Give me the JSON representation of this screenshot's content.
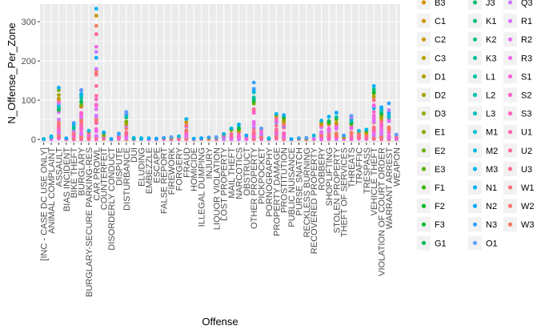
{
  "chart_data": {
    "type": "scatter",
    "xlabel": "Offense",
    "ylabel": "N_Offense_Per_Zone",
    "ylim": [
      -8,
      345
    ],
    "y_ticks": [
      0,
      100,
      200,
      300
    ],
    "grid": true,
    "legend_position": "right",
    "categories": [
      "[INC - CASE DC USE ONLY]",
      "ANIMAL COMPLAINT",
      "ASSAULT",
      "BIAS INCIDENT",
      "BIKE THEFT",
      "BURGLARY",
      "BURGLARY-SECURE PARKING-RES",
      "CAR PROWL",
      "COUNTERFEIT",
      "DISORDERLY CONDUCT",
      "DISPUTE",
      "DISTURBANCE",
      "DUI",
      "ELUDING",
      "EMBEZZLE",
      "ESCAPE",
      "FALSE REPORT",
      "FIREWORK",
      "FORGERY",
      "FRAUD",
      "HOMICIDE",
      "ILLEGAL DUMPING",
      "INJURY",
      "LIQUOR VIOLATION",
      "LOST PROPERTY",
      "MAIL THEFT",
      "NARCOTICS",
      "OBSTRUCT",
      "OTHER PROPERTY",
      "PICKPOCKET",
      "PORNOGRAPHY",
      "PROPERTY DAMAGE",
      "PROSTITUTION",
      "PUBLIC NUISANCE",
      "PURSE SNATCH",
      "RECKLESS BURNING",
      "RECOVERED PROPERTY",
      "ROBBERY",
      "SHOPLIFTING",
      "STOLEN PROPERTY",
      "THEFT OF SERVICES",
      "THREATS",
      "TRAFFIC",
      "TRESPASS",
      "VEHICLE THEFT",
      "VIOLATION OF COURT ORDER",
      "WARRANT ARREST",
      "WEAPON"
    ],
    "x_tick_labels": [
      "[INC - CASE DC USE ONLY]",
      "ANIMAL COMPLAINT",
      "ASSAULT",
      "BIAS INCIDENT",
      "BIKE THEFT",
      "BURGLARY",
      "BURGLARY-SECURE PARKING-RES",
      "CAR PROWL",
      "COUNTERFEIT",
      "DISORDERLY CONDUCT",
      "DISPUTE",
      "DISTURBANCE",
      "DUI",
      "ELUDING",
      "EMBEZZLE",
      "ESCAPE",
      "FALSE REPORT",
      "FIREWORK",
      "FORGERY",
      "FRAUD",
      "HOMICIDE",
      "ILLEGAL DUMPING",
      "INJURY",
      "LIQUOR VIOLATION",
      "LOST PROPERTY",
      "MAIL THEFT",
      "NARCOTICS",
      "OBSTRUCT",
      "OTHER PROPERTY",
      "PICKPOCKET",
      "PORNOGRAPHY",
      "PROPERTY DAMAGE",
      "PROSTITUTION",
      "PUBLIC NUISANCE",
      "PURSE SNATCH",
      "RECKLESS BURNING",
      "RECOVERED PROPERTY",
      "ROBBERY",
      "SHOPLIFTING",
      "STOLEN PROPERTY",
      "THEFT OF SERVICES",
      "THREATS",
      "TRAFFIC",
      "TRESPASS",
      "VEHICLE THEFT",
      "VIOLATION OF COURT ORDER",
      "WARRANT ARREST",
      "WEAPON"
    ],
    "category_max": [
      1,
      8,
      132,
      3,
      42,
      126,
      22,
      333,
      18,
      1,
      15,
      70,
      4,
      3,
      3,
      2,
      4,
      6,
      8,
      52,
      2,
      3,
      5,
      6,
      14,
      28,
      38,
      10,
      145,
      28,
      3,
      65,
      62,
      1,
      3,
      4,
      10,
      48,
      58,
      68,
      10,
      60,
      22,
      25,
      136,
      82,
      92,
      12
    ],
    "legend_visible": [
      {
        "name": "B3",
        "color": "#D89000"
      },
      {
        "name": "C1",
        "color": "#D39200"
      },
      {
        "name": "C2",
        "color": "#C49A00"
      },
      {
        "name": "C3",
        "color": "#B79F00"
      },
      {
        "name": "D1",
        "color": "#AEA200"
      },
      {
        "name": "D2",
        "color": "#A3A500"
      },
      {
        "name": "D3",
        "color": "#96A900"
      },
      {
        "name": "E1",
        "color": "#86AC00"
      },
      {
        "name": "E2",
        "color": "#72B000"
      },
      {
        "name": "E3",
        "color": "#5BB300"
      },
      {
        "name": "F1",
        "color": "#39B600"
      },
      {
        "name": "F2",
        "color": "#00B81F"
      },
      {
        "name": "F3",
        "color": "#00BA38"
      },
      {
        "name": "G1",
        "color": "#00BC59"
      },
      {
        "name": "J3",
        "color": "#00BE70"
      },
      {
        "name": "K1",
        "color": "#00BF7D"
      },
      {
        "name": "K2",
        "color": "#00C08B"
      },
      {
        "name": "K3",
        "color": "#00C19A"
      },
      {
        "name": "L1",
        "color": "#00C0A8"
      },
      {
        "name": "L2",
        "color": "#00BFB5"
      },
      {
        "name": "L3",
        "color": "#00BEC4"
      },
      {
        "name": "M1",
        "color": "#00BCD2"
      },
      {
        "name": "M2",
        "color": "#00BADE"
      },
      {
        "name": "M3",
        "color": "#00B6EB"
      },
      {
        "name": "N1",
        "color": "#00B0F6"
      },
      {
        "name": "N2",
        "color": "#00A9FF"
      },
      {
        "name": "N3",
        "color": "#35A2FF"
      },
      {
        "name": "O1",
        "color": "#619CFF"
      },
      {
        "name": "Q3",
        "color": "#C77CFF"
      },
      {
        "name": "R1",
        "color": "#DB72FB"
      },
      {
        "name": "R2",
        "color": "#E76BF3"
      },
      {
        "name": "R3",
        "color": "#F066E9"
      },
      {
        "name": "S1",
        "color": "#F962DD"
      },
      {
        "name": "S2",
        "color": "#FF61CC"
      },
      {
        "name": "S3",
        "color": "#FF62BC"
      },
      {
        "name": "U1",
        "color": "#FF65AE"
      },
      {
        "name": "U2",
        "color": "#FF689F"
      },
      {
        "name": "U3",
        "color": "#FF6C91"
      },
      {
        "name": "W1",
        "color": "#FC717F"
      },
      {
        "name": "W2",
        "color": "#F8766D"
      },
      {
        "name": "W3",
        "color": "#F47A5F"
      }
    ]
  },
  "colors": {
    "panel_background": "#EBEBEB",
    "grid_major": "#FFFFFF",
    "tick_text": "#4D4D4D",
    "legend_key_background": "#F2F2F2"
  }
}
